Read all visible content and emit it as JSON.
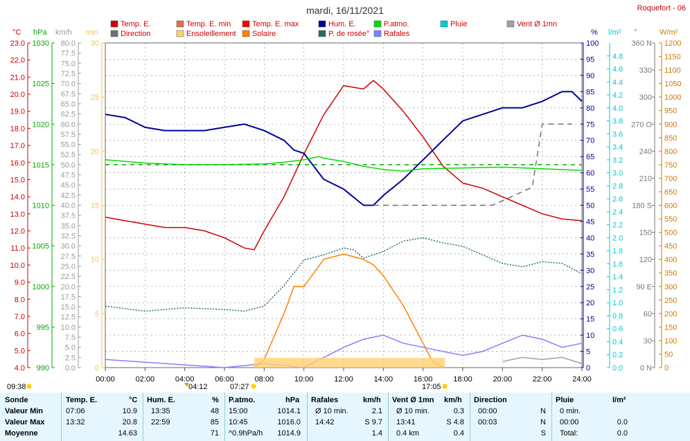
{
  "title": "mardi, 16/11/2021",
  "station": "Roquefort - 06",
  "legend": [
    {
      "label": "Temp. E.",
      "color": "#cc0000"
    },
    {
      "label": "Temp. E. min",
      "color": "#e07050"
    },
    {
      "label": "Temp. E. max",
      "color": "#ff0000"
    },
    {
      "label": "Hum. E.",
      "color": "#000099"
    },
    {
      "label": "P.atmo.",
      "color": "#00dd00"
    },
    {
      "label": "Pluie",
      "color": "#00cccc"
    },
    {
      "label": "Vent Ø 1mn",
      "color": "#a0a0a0"
    },
    {
      "label": "Direction",
      "color": "#707070"
    },
    {
      "label": "Ensoleillement",
      "color": "#ffd070"
    },
    {
      "label": "Solaire",
      "color": "#ff8000"
    },
    {
      "label": "P. de rosée°",
      "color": "#2a6a6a"
    },
    {
      "label": "Rafales",
      "color": "#8080ff"
    }
  ],
  "axis_units": {
    "temp": "°C",
    "pressure": "hPa",
    "wind": "km/h",
    "sun": "min",
    "hum": "%",
    "rain": "l/m²",
    "dir": "°",
    "solar": "W/m²"
  },
  "axis_colors": {
    "temp": "#cc0000",
    "pressure": "#00aa00",
    "wind": "#999999",
    "sun": "#ffc040",
    "hum": "#000099",
    "rain": "#00cccc",
    "dir": "#777777",
    "solar": "#cc7a00"
  },
  "sun_labels": {
    "sunrise": "07:27",
    "sunset": "17:05",
    "left": "09:38",
    "moonrise": "04:12"
  },
  "chart_data": {
    "type": "line",
    "title": "mardi, 16/11/2021",
    "x_ticks": [
      "00:00",
      "02:00",
      "04:00",
      "06:00",
      "08:00",
      "10:00",
      "12:00",
      "14:00",
      "16:00",
      "18:00",
      "20:00",
      "22:00",
      "24:00"
    ],
    "y_axes": {
      "temp": {
        "range": [
          4.0,
          23.0
        ],
        "ticks": [
          "23.0",
          "22.0",
          "21.0",
          "20.0",
          "19.0",
          "18.0",
          "17.0",
          "16.0",
          "15.0",
          "14.0",
          "13.0",
          "12.0",
          "11.0",
          "10.0",
          "9.0",
          "8.0",
          "7.0",
          "6.0",
          "5.0",
          "4.0"
        ]
      },
      "pressure": {
        "range": [
          990,
          1030
        ],
        "ticks": [
          "1030",
          "1025",
          "1020",
          "1015",
          "1010",
          "1005",
          "1000",
          "995",
          "990"
        ]
      },
      "wind": {
        "range": [
          0,
          80
        ],
        "ticks": [
          "80.0",
          "77.5",
          "75.0",
          "72.5",
          "70.0",
          "67.5",
          "65.0",
          "62.5",
          "60.0",
          "57.5",
          "55.0",
          "52.5",
          "50.0",
          "47.5",
          "45.0",
          "42.5",
          "40.0",
          "37.5",
          "35.0",
          "32.5",
          "30.0",
          "27.5",
          "25.0",
          "22.5",
          "20.0",
          "17.5",
          "15.0",
          "12.5",
          "10.0",
          "7.5",
          "5.0",
          "2.5",
          "0.0"
        ]
      },
      "sun": {
        "range": [
          0,
          30
        ],
        "ticks": [
          "30",
          "25",
          "20",
          "15",
          "10",
          "5",
          "0"
        ]
      },
      "hum": {
        "range": [
          0,
          100
        ],
        "ticks": [
          "100",
          "95",
          "90",
          "85",
          "80",
          "75",
          "70",
          "65",
          "60",
          "55",
          "50",
          "45",
          "40",
          "35",
          "30",
          "25",
          "20",
          "15",
          "10",
          "5",
          "0"
        ]
      },
      "rain": {
        "range": [
          0,
          5.0
        ],
        "ticks": [
          "4.8",
          "4.6",
          "4.4",
          "4.2",
          "4.0",
          "3.8",
          "3.6",
          "3.4",
          "3.2",
          "3.0",
          "2.8",
          "2.6",
          "2.4",
          "2.2",
          "2.0",
          "1.8",
          "1.6",
          "1.4",
          "1.2",
          "1.0",
          "0.8",
          "0.6",
          "0.4",
          "0.2",
          "0.0"
        ]
      },
      "dir": {
        "range": [
          0,
          360
        ],
        "ticks": [
          "360 N",
          "330",
          "300",
          "270 O",
          "240",
          "210",
          "180 S",
          "150",
          "120",
          "90 E",
          "60",
          "30",
          "0 N"
        ]
      },
      "solar": {
        "range": [
          0,
          1200
        ],
        "ticks": [
          "1200",
          "1150",
          "1100",
          "1050",
          "1000",
          "950",
          "900",
          "850",
          "800",
          "750",
          "700",
          "650",
          "600",
          "550",
          "500",
          "450",
          "400",
          "350",
          "300",
          "250",
          "200",
          "150",
          "100",
          "50",
          "0"
        ]
      }
    },
    "series": [
      {
        "name": "Temp. E.",
        "axis": "temp",
        "x": [
          0,
          1,
          2,
          3,
          4,
          5,
          6,
          7,
          7.5,
          8,
          9,
          10,
          11,
          12,
          13,
          13.5,
          14,
          15,
          16,
          17,
          18,
          19,
          20,
          21,
          22,
          23,
          24
        ],
        "y": [
          12.8,
          12.6,
          12.4,
          12.2,
          12.2,
          12.0,
          11.6,
          11.0,
          10.9,
          12.0,
          14.0,
          16.5,
          18.8,
          20.5,
          20.3,
          20.8,
          20.3,
          19.0,
          17.5,
          15.8,
          14.8,
          14.5,
          14.0,
          13.5,
          13.0,
          12.7,
          12.6
        ]
      },
      {
        "name": "Hum. E.",
        "axis": "hum",
        "x": [
          0,
          1,
          2,
          3,
          4,
          5,
          6,
          7,
          8,
          9,
          9.5,
          10,
          10.5,
          11,
          12,
          13,
          13.5,
          14,
          15,
          16,
          17,
          18,
          19,
          20,
          21,
          22,
          23,
          23.5,
          24
        ],
        "y": [
          78,
          77,
          74,
          73,
          73,
          73,
          74,
          75,
          73,
          70,
          67,
          66,
          62,
          58,
          55,
          50,
          50,
          53,
          58,
          64,
          70,
          76,
          78,
          80,
          80,
          82,
          85,
          85,
          82
        ]
      },
      {
        "name": "P.atmo.",
        "axis": "pressure",
        "x": [
          0,
          2,
          4,
          6,
          8,
          9,
          10,
          10.75,
          11,
          12,
          13,
          14,
          15,
          16,
          18,
          20,
          22,
          24
        ],
        "y": [
          1015.6,
          1015.2,
          1015.0,
          1015.0,
          1015.1,
          1015.3,
          1015.6,
          1016.0,
          1015.8,
          1015.4,
          1014.8,
          1014.4,
          1014.2,
          1014.5,
          1014.6,
          1014.7,
          1014.5,
          1014.3
        ]
      },
      {
        "name": "P. de rosée°",
        "axis": "temp",
        "x": [
          0,
          2,
          4,
          6,
          7,
          8,
          9,
          10,
          11,
          12,
          12.5,
          13,
          14,
          15,
          16,
          17,
          18,
          19,
          20,
          21,
          22,
          23,
          24
        ],
        "y": [
          7.6,
          7.3,
          7.5,
          7.4,
          7.3,
          7.6,
          8.8,
          10.3,
          10.6,
          11.0,
          10.9,
          10.4,
          10.8,
          11.4,
          11.6,
          11.3,
          11.1,
          10.6,
          10.1,
          9.9,
          10.2,
          10.1,
          9.5
        ]
      },
      {
        "name": "Solaire",
        "axis": "solar",
        "x": [
          7.5,
          8,
          9,
          9.5,
          10,
          11,
          12,
          13,
          13.5,
          14,
          15,
          16,
          16.5,
          17,
          17.1
        ],
        "y": [
          0,
          30,
          200,
          300,
          300,
          400,
          420,
          400,
          380,
          340,
          230,
          90,
          20,
          0,
          0
        ]
      },
      {
        "name": "Vent Ø 1mn",
        "axis": "wind",
        "x": [
          20,
          21,
          22,
          23,
          24
        ],
        "y": [
          1.5,
          2.5,
          2.0,
          2.5,
          1.0
        ]
      },
      {
        "name": "Direction",
        "axis": "dir",
        "x": [
          13.5,
          16.5,
          19.5,
          21.5,
          22,
          23.5
        ],
        "y": [
          180,
          180,
          180,
          200,
          270,
          270
        ]
      },
      {
        "name": "Rafales",
        "axis": "wind",
        "x": [
          0,
          3,
          6,
          8,
          10,
          12,
          13,
          14,
          15,
          16,
          17,
          18,
          19,
          20,
          21,
          22,
          23,
          24
        ],
        "y": [
          2,
          1,
          0,
          1,
          0,
          5,
          7,
          8,
          6,
          5,
          4,
          3,
          4,
          6,
          8,
          7,
          5,
          6
        ]
      }
    ]
  },
  "table": {
    "headers": {
      "sonde": "Sonde",
      "temp": "Temp. E.",
      "temp_u": "°C",
      "hum": "Hum. E.",
      "hum_u": "%",
      "patmo": "P.atmo.",
      "patmo_u": "hPa",
      "rafales": "Rafales",
      "rafales_u": "km/h",
      "vent": "Vent Ø 1mn",
      "vent_u": "km/h",
      "dir": "Direction",
      "pluie": "Pluie",
      "pluie_u": "l/m²"
    },
    "rows": [
      {
        "label": "Valeur Min",
        "temp_t": "07:06",
        "temp_v": "10.9",
        "hum_t": "13:35",
        "hum_v": "48",
        "patmo_t": "15:00",
        "patmo_v": "1014.1",
        "raf_a": "Ø 10 min.",
        "raf_v": "2.1",
        "vent_a": "Ø 10 min.",
        "vent_v": "0.3",
        "dir_t": "00:00",
        "dir_v": "N",
        "pluie_a": "0 min.",
        "pluie_v": ""
      },
      {
        "label": "Valeur Max",
        "temp_t": "13:32",
        "temp_v": "20.8",
        "hum_t": "22:59",
        "hum_v": "85",
        "patmo_t": "10:45",
        "patmo_v": "1016.0",
        "raf_a": "14:42",
        "raf_v": "S 9.7",
        "vent_a": "13:41",
        "vent_v": "S 4.8",
        "dir_t": "00:03",
        "dir_v": "N",
        "pluie_a": "00:00",
        "pluie_v": "0.0"
      },
      {
        "label": "Moyenne",
        "temp_t": "",
        "temp_v": "14.63",
        "hum_t": "",
        "hum_v": "71",
        "patmo_t": "^0.9hPa/h",
        "patmo_v": "1014.9",
        "raf_a": "",
        "raf_v": "1.4",
        "vent_a": "0.4 km",
        "vent_v": "0.4",
        "dir_t": "",
        "dir_v": "S",
        "pluie_a": "Total:",
        "pluie_v": "0.0"
      }
    ]
  }
}
